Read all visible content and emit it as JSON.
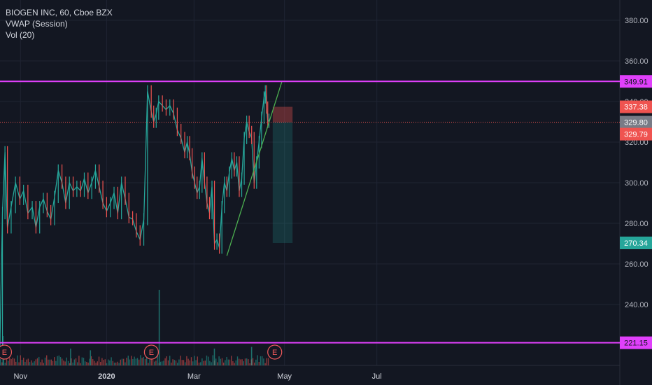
{
  "legend": {
    "symbol": "BIOGEN INC, 60, Cboe BZX",
    "indicator1": "VWAP (Session)",
    "indicator2": "Vol (20)"
  },
  "colors": {
    "background": "#131722",
    "grid": "#1f2433",
    "text": "#d1d4dc",
    "up": "#26a69a",
    "down": "#ef5350",
    "level_line": "#e040fb",
    "trendline": "#4caf50"
  },
  "chart_data": {
    "type": "line",
    "title": "BIOGEN INC, 60, Cboe BZX",
    "ylim": [
      210,
      390
    ],
    "y_ticks": [
      {
        "value": 380,
        "label": "380.00"
      },
      {
        "value": 360,
        "label": "360.00"
      },
      {
        "value": 340,
        "label": "340.00"
      },
      {
        "value": 320,
        "label": "320.00"
      },
      {
        "value": 300,
        "label": "300.00"
      },
      {
        "value": 280,
        "label": "280.00"
      },
      {
        "value": 260,
        "label": "260.00"
      },
      {
        "value": 240,
        "label": "240.00"
      }
    ],
    "x_ticks": [
      {
        "t": 0.033,
        "label": "Nov",
        "bold": false
      },
      {
        "t": 0.172,
        "label": "2020",
        "bold": true
      },
      {
        "t": 0.313,
        "label": "Mar",
        "bold": false
      },
      {
        "t": 0.459,
        "label": "May",
        "bold": false
      },
      {
        "t": 0.608,
        "label": "Jul",
        "bold": false
      }
    ],
    "series": [
      {
        "x": [
          0.0,
          0.004,
          0.008,
          0.012,
          0.018,
          0.025,
          0.032,
          0.038,
          0.045,
          0.052,
          0.058,
          0.064,
          0.07,
          0.076,
          0.082,
          0.088,
          0.094,
          0.1,
          0.106,
          0.112,
          0.118,
          0.124,
          0.13,
          0.136,
          0.142,
          0.148,
          0.154,
          0.16,
          0.166,
          0.172,
          0.178,
          0.184,
          0.19,
          0.196,
          0.202,
          0.208,
          0.214,
          0.22,
          0.226,
          0.232,
          0.238,
          0.244,
          0.248,
          0.252,
          0.256,
          0.262,
          0.268,
          0.274,
          0.28,
          0.286,
          0.292,
          0.298,
          0.302,
          0.306,
          0.31,
          0.314,
          0.318,
          0.322,
          0.326,
          0.33,
          0.334,
          0.338,
          0.342,
          0.346,
          0.35,
          0.354,
          0.358,
          0.362,
          0.366,
          0.37,
          0.374,
          0.378,
          0.382,
          0.386,
          0.39,
          0.394,
          0.398,
          0.402,
          0.406,
          0.41,
          0.414,
          0.418,
          0.422,
          0.426,
          0.428,
          0.43,
          0.432,
          0.434
        ],
        "y": [
          222,
          285,
          315,
          278,
          288,
          300,
          292,
          296,
          285,
          288,
          278,
          288,
          292,
          286,
          282,
          293,
          306,
          300,
          290,
          300,
          296,
          298,
          296,
          302,
          295,
          300,
          306,
          298,
          290,
          286,
          290,
          295,
          285,
          300,
          292,
          283,
          282,
          276,
          272,
          282,
          345,
          335,
          330,
          334,
          340,
          338,
          336,
          338,
          334,
          326,
          322,
          315,
          320,
          314,
          305,
          300,
          295,
          298,
          312,
          300,
          290,
          285,
          298,
          270,
          272,
          268,
          288,
          300,
          296,
          305,
          312,
          306,
          310,
          296,
          302,
          322,
          330,
          325,
          322,
          300,
          310,
          320,
          332,
          342,
          345,
          337,
          330,
          331
        ]
      }
    ],
    "levels": [
      {
        "value": 349.91,
        "label": "349.91"
      },
      {
        "value": 221.15,
        "label": "221.15"
      }
    ],
    "price_tags": [
      {
        "value": 337.38,
        "label": "337.38",
        "kind": "stop"
      },
      {
        "value": 329.8,
        "label": "329.80",
        "kind": "current"
      },
      {
        "value": 329.79,
        "label": "329.79",
        "kind": "entry"
      },
      {
        "value": 270.34,
        "label": "270.34",
        "kind": "target"
      }
    ],
    "trendline": [
      {
        "t": 0.366,
        "v": 264
      },
      {
        "t": 0.455,
        "v": 350
      }
    ],
    "earnings_markers": [
      {
        "t": 0.005,
        "label": "E"
      },
      {
        "t": 0.242,
        "label": "E"
      },
      {
        "t": 0.441,
        "label": "E"
      }
    ],
    "position": {
      "t_start": 0.44,
      "t_end": 0.472,
      "entry": 329.79,
      "stop": 337.38,
      "target": 270.34
    },
    "volume_spikes": [
      {
        "t": 0.256,
        "v": 0.9
      },
      {
        "t": 0.004,
        "v": 0.35
      },
      {
        "t": 0.113,
        "v": 0.2
      },
      {
        "t": 0.145,
        "v": 0.18
      },
      {
        "t": 0.345,
        "v": 0.2
      },
      {
        "t": 0.405,
        "v": 0.22
      }
    ]
  }
}
